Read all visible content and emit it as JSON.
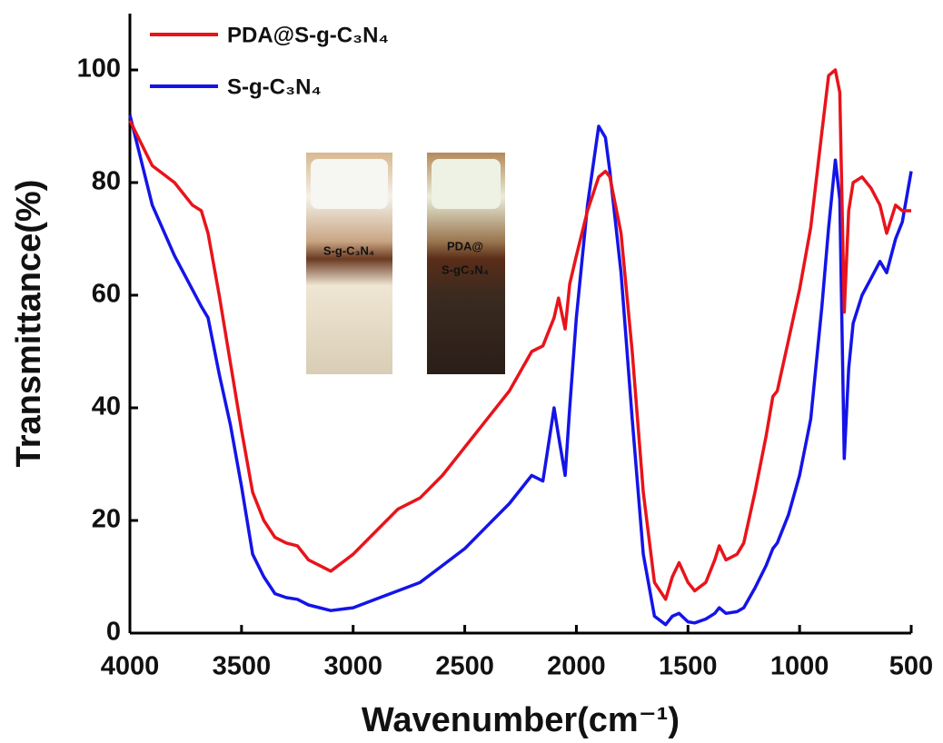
{
  "chart_data": {
    "type": "line",
    "x_label": "Wavenumber(cm⁻¹)",
    "y_label": "Transmittance(%)",
    "x": [
      4000,
      3900,
      3800,
      3720,
      3680,
      3650,
      3600,
      3550,
      3500,
      3450,
      3400,
      3350,
      3300,
      3250,
      3200,
      3100,
      3000,
      2900,
      2800,
      2700,
      2600,
      2500,
      2400,
      2300,
      2200,
      2150,
      2100,
      2080,
      2050,
      2030,
      2000,
      1950,
      1900,
      1870,
      1850,
      1800,
      1750,
      1700,
      1650,
      1600,
      1570,
      1540,
      1500,
      1470,
      1420,
      1380,
      1360,
      1330,
      1280,
      1250,
      1200,
      1150,
      1120,
      1100,
      1050,
      1000,
      950,
      900,
      870,
      840,
      820,
      800,
      780,
      760,
      720,
      680,
      640,
      610,
      570,
      540,
      500
    ],
    "series": [
      {
        "name": "PDA@S-g-C₃N₄",
        "color": "#e8141b",
        "values": [
          91,
          83,
          80,
          76,
          75,
          71,
          60,
          48,
          36,
          25,
          20,
          17,
          16,
          15.5,
          13,
          11,
          14,
          18,
          22,
          24,
          28,
          33,
          38,
          43,
          50,
          51,
          56,
          59.5,
          54,
          62,
          67,
          75,
          81,
          82,
          81,
          71,
          50,
          25,
          9,
          6,
          10,
          12.5,
          9,
          7.5,
          9,
          13,
          15.5,
          13,
          14,
          16,
          25,
          35,
          42,
          43,
          52,
          61,
          72,
          89,
          99,
          100,
          96,
          57,
          75,
          80,
          81,
          79,
          76,
          71,
          76,
          75,
          75
        ]
      },
      {
        "name": "S-g-C₃N₄",
        "color": "#1414e8",
        "values": [
          92,
          76,
          67,
          61,
          58,
          56,
          46,
          37,
          26,
          14,
          10,
          7,
          6.3,
          6,
          5,
          4,
          4.5,
          6,
          7.5,
          9,
          12,
          15,
          19,
          23,
          28,
          27,
          40,
          35,
          28,
          40,
          56,
          76,
          90,
          88,
          82,
          64,
          38,
          14,
          3,
          1.5,
          3,
          3.5,
          2,
          1.8,
          2.5,
          3.5,
          4.5,
          3.5,
          3.8,
          4.5,
          8,
          12,
          15,
          16,
          21,
          28,
          38,
          58,
          72,
          84,
          77,
          31,
          47,
          55,
          60,
          63,
          66,
          64,
          70,
          73,
          82
        ]
      }
    ],
    "xlim": [
      4000,
      500
    ],
    "xticks": [
      4000,
      3500,
      3000,
      2500,
      2000,
      1500,
      1000,
      500
    ],
    "ylim": [
      0,
      110
    ],
    "yticks": [
      0,
      20,
      40,
      60,
      80,
      100
    ],
    "inset_labels": [
      "S-g-C₃N₄",
      "PDA@",
      "S-gC₃N₄"
    ]
  }
}
